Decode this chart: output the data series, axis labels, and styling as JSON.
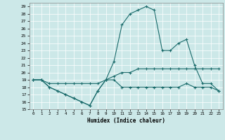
{
  "title": "",
  "xlabel": "Humidex (Indice chaleur)",
  "bg_color": "#cce8e8",
  "line_color": "#1a6b6b",
  "grid_color": "#ffffff",
  "xlim": [
    -0.5,
    23.5
  ],
  "ylim": [
    15,
    29.5
  ],
  "yticks": [
    15,
    16,
    17,
    18,
    19,
    20,
    21,
    22,
    23,
    24,
    25,
    26,
    27,
    28,
    29
  ],
  "xticks": [
    0,
    1,
    2,
    3,
    4,
    5,
    6,
    7,
    8,
    9,
    10,
    11,
    12,
    13,
    14,
    15,
    16,
    17,
    18,
    19,
    20,
    21,
    22,
    23
  ],
  "line1_x": [
    0,
    1,
    2,
    3,
    4,
    5,
    6,
    7,
    8,
    9,
    10,
    11,
    12,
    13,
    14,
    15,
    16,
    17,
    18,
    19,
    20,
    21,
    22,
    23
  ],
  "line1_y": [
    19.0,
    19.0,
    18.0,
    17.5,
    17.0,
    16.5,
    16.0,
    15.5,
    17.5,
    19.0,
    19.0,
    18.0,
    18.0,
    18.0,
    18.0,
    18.0,
    18.0,
    18.0,
    18.0,
    18.5,
    18.0,
    18.0,
    18.0,
    17.5
  ],
  "line2_x": [
    0,
    1,
    2,
    3,
    4,
    5,
    6,
    7,
    8,
    9,
    10,
    11,
    12,
    13,
    14,
    15,
    16,
    17,
    18,
    19,
    20,
    21,
    22,
    23
  ],
  "line2_y": [
    19.0,
    19.0,
    18.5,
    18.5,
    18.5,
    18.5,
    18.5,
    18.5,
    18.5,
    19.0,
    19.5,
    20.0,
    20.0,
    20.5,
    20.5,
    20.5,
    20.5,
    20.5,
    20.5,
    20.5,
    20.5,
    20.5,
    20.5,
    20.5
  ],
  "line3_x": [
    0,
    1,
    2,
    3,
    4,
    5,
    6,
    7,
    8,
    9,
    10,
    11,
    12,
    13,
    14,
    15,
    16,
    17,
    18,
    19,
    20,
    21,
    22,
    23
  ],
  "line3_y": [
    19.0,
    19.0,
    18.0,
    17.5,
    17.0,
    16.5,
    16.0,
    15.5,
    17.5,
    19.0,
    21.5,
    26.5,
    28.0,
    28.5,
    29.0,
    28.5,
    23.0,
    23.0,
    24.0,
    24.5,
    21.0,
    18.5,
    18.5,
    17.5
  ]
}
